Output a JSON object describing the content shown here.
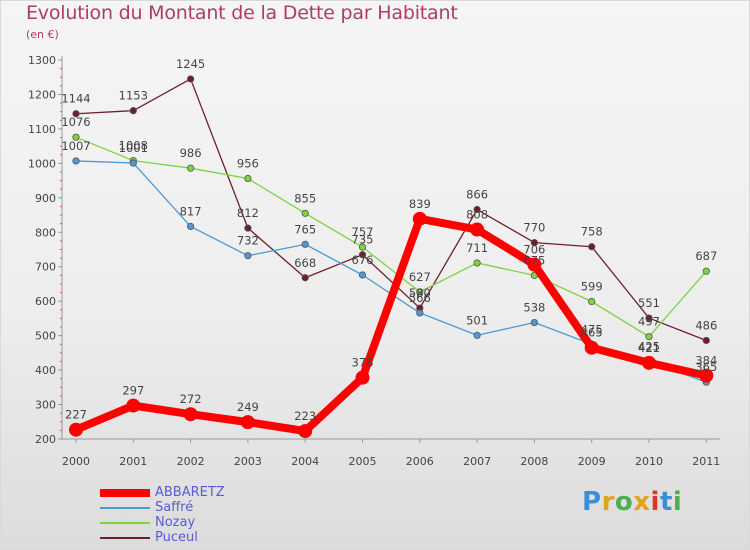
{
  "title": "Evolution du Montant de la Dette par Habitant",
  "subtitle": "(en €)",
  "brand": {
    "letters": [
      "P",
      "r",
      "o",
      "x",
      "i",
      "t",
      "i"
    ],
    "colors": [
      "#3a8fd8",
      "#e2a21a",
      "#4caf50",
      "#e2a21a",
      "#d8392b",
      "#3a8fd8",
      "#4caf50"
    ]
  },
  "chart_data": {
    "type": "line",
    "categories": [
      "2000",
      "2001",
      "2002",
      "2003",
      "2004",
      "2005",
      "2006",
      "2007",
      "2008",
      "2009",
      "2010",
      "2011"
    ],
    "ylim": [
      200,
      1300
    ],
    "yticks": [
      200,
      300,
      400,
      500,
      600,
      700,
      800,
      900,
      1000,
      1100,
      1200,
      1300
    ],
    "grid": false,
    "legend_position": "bottom-left",
    "series": [
      {
        "name": "Puceul",
        "color": "#6e1f2a",
        "values": [
          1144,
          1153,
          1245,
          812,
          668,
          735,
          580,
          866,
          770,
          758,
          551,
          486
        ],
        "labels": [
          "1144",
          "1153",
          "1245",
          "812",
          "668",
          "735",
          "580",
          "866",
          "770",
          "758",
          "551",
          "486"
        ]
      },
      {
        "name": "Nozay",
        "color": "#7ed33e",
        "values": [
          1076,
          1008,
          986,
          956,
          855,
          757,
          627,
          711,
          675,
          599,
          497,
          687
        ],
        "labels": [
          "1076",
          "1008",
          "986",
          "956",
          "855",
          "757",
          "627",
          "711",
          "675",
          "599",
          "497",
          "687"
        ]
      },
      {
        "name": "Saffré",
        "color": "#4f98d4",
        "values": [
          1007,
          1001,
          817,
          732,
          765,
          676,
          566,
          501,
          538,
          475,
          425,
          365
        ],
        "labels": [
          "1007",
          "1001",
          "817",
          "732",
          "765",
          "676",
          "566",
          "501",
          "538",
          "475",
          "425",
          "365"
        ]
      },
      {
        "name": "ABBARETZ",
        "color": "#ff0000",
        "values": [
          227,
          297,
          272,
          249,
          223,
          378,
          839,
          808,
          706,
          465,
          421,
          384
        ],
        "labels": [
          "227",
          "297",
          "272",
          "249",
          "223",
          "378",
          "839",
          "808",
          "706",
          "465",
          "421",
          "384"
        ]
      }
    ],
    "legend": [
      "ABBARETZ",
      "Saffré",
      "Nozay",
      "Puceul"
    ]
  }
}
